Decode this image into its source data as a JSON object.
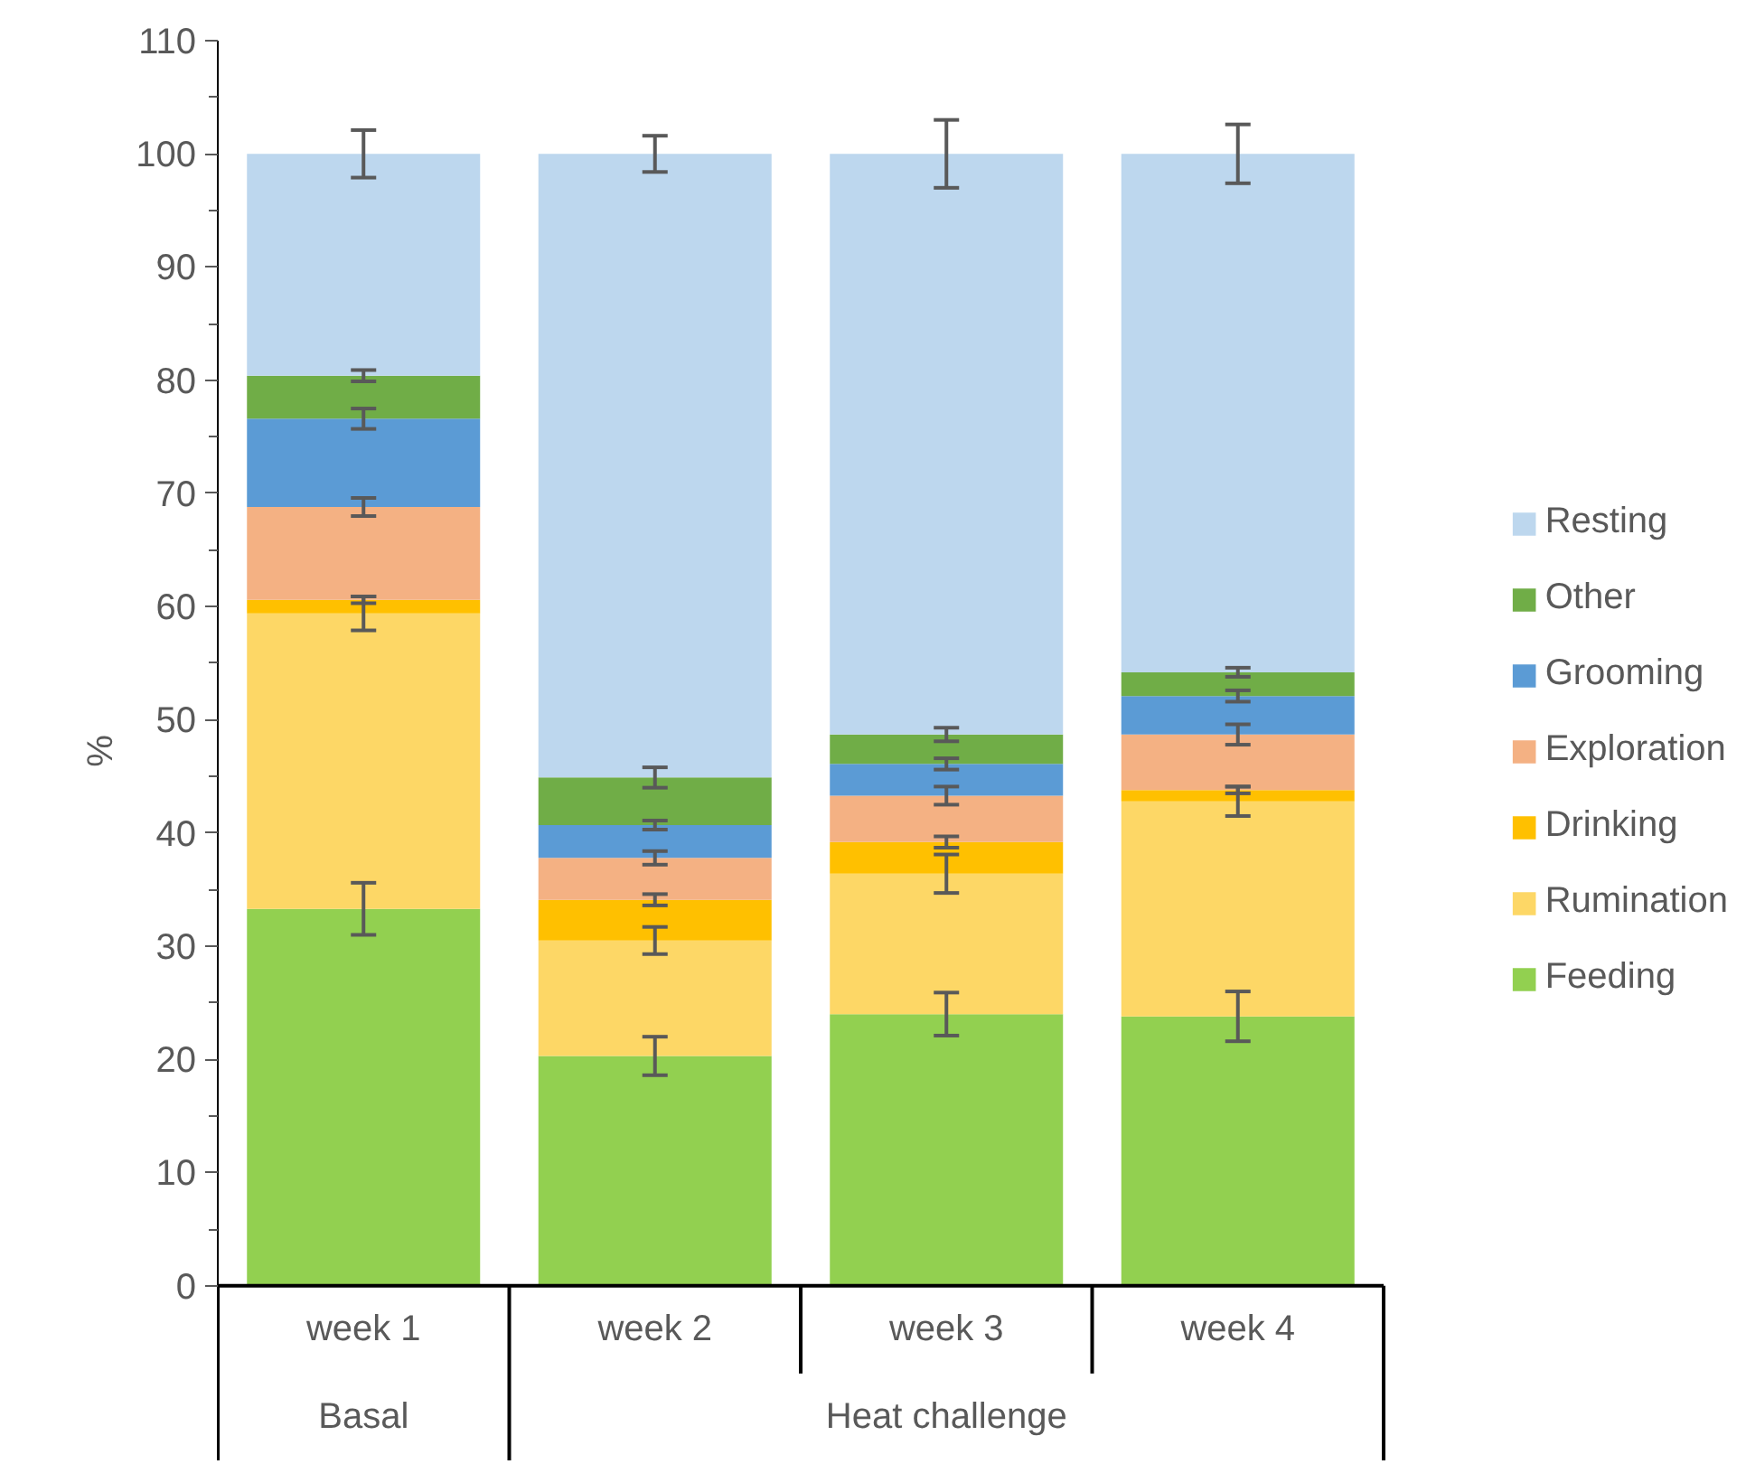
{
  "chart_data": {
    "type": "bar",
    "stacked": true,
    "ylabel": "%",
    "categories": [
      "week 1",
      "week 2",
      "week 3",
      "week 4"
    ],
    "annotations": [
      "Basal",
      "Heat challenge"
    ],
    "series": [
      {
        "name": "Feeding",
        "color": "#92d050",
        "values": [
          33.3,
          20.3,
          24.0,
          23.8
        ],
        "errors": [
          2.3,
          1.7,
          1.9,
          2.2
        ]
      },
      {
        "name": "Rumination",
        "color": "#fdd766",
        "values": [
          26.1,
          10.2,
          12.4,
          19.0
        ],
        "errors": [
          1.5,
          1.2,
          1.7,
          1.3
        ]
      },
      {
        "name": "Drinking",
        "color": "#ffc000",
        "values": [
          1.2,
          3.6,
          2.8,
          1.0
        ],
        "errors": [
          0.3,
          0.5,
          0.5,
          0.3
        ]
      },
      {
        "name": "Exploration",
        "color": "#f4b183",
        "values": [
          8.2,
          3.7,
          4.1,
          4.9
        ],
        "errors": [
          0.8,
          0.6,
          0.8,
          0.9
        ]
      },
      {
        "name": "Grooming",
        "color": "#5b9bd5",
        "values": [
          7.8,
          2.9,
          2.8,
          3.4
        ],
        "errors": [
          0.9,
          0.4,
          0.5,
          0.5
        ]
      },
      {
        "name": "Other",
        "color": "#70ad47",
        "values": [
          3.8,
          4.2,
          2.6,
          2.1
        ],
        "errors": [
          0.5,
          0.9,
          0.6,
          0.4
        ]
      },
      {
        "name": "Resting",
        "color": "#bdd7ee",
        "values": [
          19.6,
          55.1,
          51.3,
          45.8
        ],
        "errors": [
          2.1,
          1.6,
          3.0,
          2.6
        ]
      }
    ],
    "ylim": [
      0,
      110
    ],
    "yticks": [
      0,
      10,
      20,
      30,
      40,
      50,
      60,
      70,
      80,
      90,
      100,
      110
    ],
    "legend": "right"
  }
}
